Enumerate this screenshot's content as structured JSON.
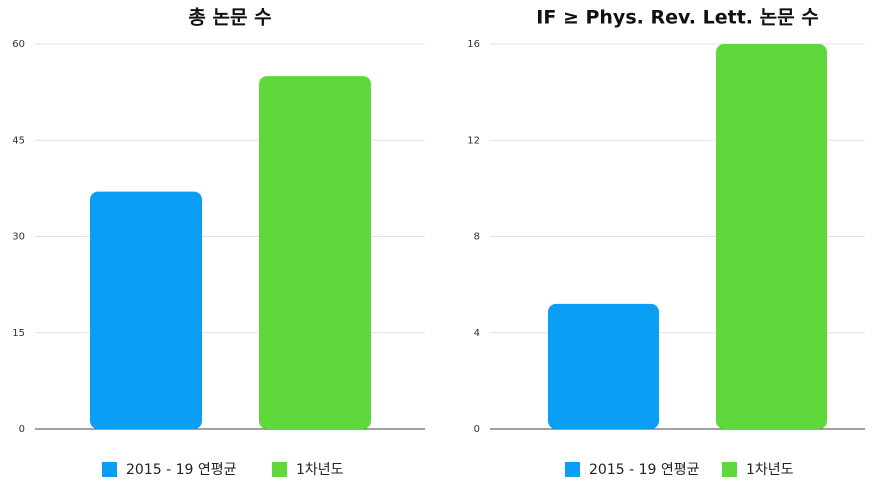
{
  "chart_data": [
    {
      "type": "bar",
      "title": "총 논문 수",
      "categories": [
        null
      ],
      "series": [
        {
          "name": "2015 - 19 연평균",
          "color": "#0a9ff5",
          "values": [
            37
          ]
        },
        {
          "name": "1차년도",
          "color": "#5ed83a",
          "values": [
            55
          ]
        }
      ],
      "ylim": [
        0,
        60
      ],
      "yticks": [
        0,
        15,
        30,
        45,
        60
      ],
      "grid": true
    },
    {
      "type": "bar",
      "title": "IF ≥ Phys. Rev. Lett. 논문 수",
      "categories": [
        null
      ],
      "series": [
        {
          "name": "2015 - 19 연평균",
          "color": "#0a9ff5",
          "values": [
            5.2
          ]
        },
        {
          "name": "1차년도",
          "color": "#5ed83a",
          "values": [
            16
          ]
        }
      ],
      "ylim": [
        0,
        16
      ],
      "yticks": [
        0,
        4,
        8,
        12,
        16
      ],
      "grid": true
    }
  ]
}
